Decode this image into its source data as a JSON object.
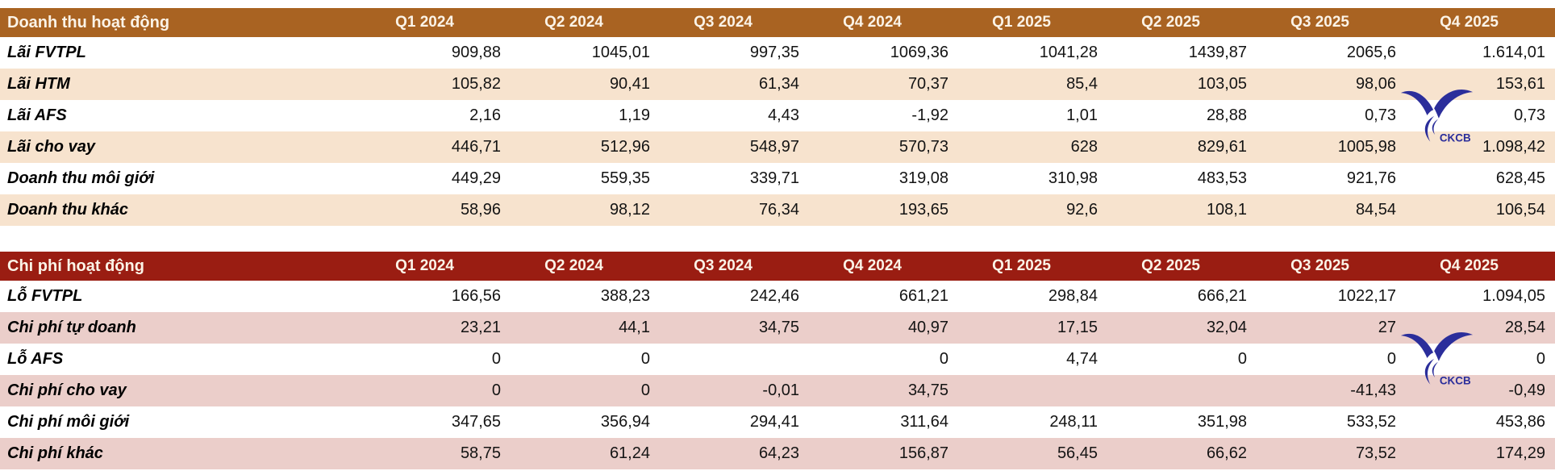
{
  "page": {
    "background": "#FFFFFF"
  },
  "watermark": {
    "text": "CKCB",
    "color": "#2B2E9B"
  },
  "revenue_table": {
    "title": "Doanh thu hoạt động",
    "header_bg": "#A96322",
    "header_text": "#FBF3E7",
    "alt_row_bg": "#F7E3CE",
    "quarters": [
      "Q1 2024",
      "Q2 2024",
      "Q3 2024",
      "Q4 2024",
      "Q1 2025",
      "Q2 2025",
      "Q3 2025",
      "Q4 2025"
    ],
    "rows": [
      {
        "label": "Lãi FVTPL",
        "values": [
          "909,88",
          "1045,01",
          "997,35",
          "1069,36",
          "1041,28",
          "1439,87",
          "2065,6",
          "1.614,01"
        ]
      },
      {
        "label": "Lãi HTM",
        "values": [
          "105,82",
          "90,41",
          "61,34",
          "70,37",
          "85,4",
          "103,05",
          "98,06",
          "153,61"
        ]
      },
      {
        "label": "Lãi AFS",
        "values": [
          "2,16",
          "1,19",
          "4,43",
          "-1,92",
          "1,01",
          "28,88",
          "0,73",
          "0,73"
        ]
      },
      {
        "label": "Lãi cho vay",
        "values": [
          "446,71",
          "512,96",
          "548,97",
          "570,73",
          "628",
          "829,61",
          "1005,98",
          "1.098,42"
        ]
      },
      {
        "label": "Doanh thu môi giới",
        "values": [
          "449,29",
          "559,35",
          "339,71",
          "319,08",
          "310,98",
          "483,53",
          "921,76",
          "628,45"
        ]
      },
      {
        "label": "Doanh thu khác",
        "values": [
          "58,96",
          "98,12",
          "76,34",
          "193,65",
          "92,6",
          "108,1",
          "84,54",
          "106,54"
        ]
      }
    ]
  },
  "expense_table": {
    "title": "Chi phí hoạt động",
    "header_bg": "#9A1D12",
    "header_text": "#FBF3E7",
    "alt_row_bg": "#EBCECA",
    "quarters": [
      "Q1 2024",
      "Q2 2024",
      "Q3 2024",
      "Q4 2024",
      "Q1 2025",
      "Q2 2025",
      "Q3 2025",
      "Q4 2025"
    ],
    "rows": [
      {
        "label": "Lỗ FVTPL",
        "values": [
          "166,56",
          "388,23",
          "242,46",
          "661,21",
          "298,84",
          "666,21",
          "1022,17",
          "1.094,05"
        ]
      },
      {
        "label": "Chi phí tự doanh",
        "values": [
          "23,21",
          "44,1",
          "34,75",
          "40,97",
          "17,15",
          "32,04",
          "27",
          "28,54"
        ]
      },
      {
        "label": "Lỗ AFS",
        "values": [
          "0",
          "0",
          "",
          "0",
          "4,74",
          "0",
          "0",
          "0"
        ]
      },
      {
        "label": "Chi phí cho vay",
        "values": [
          "0",
          "0",
          "-0,01",
          "34,75",
          "",
          "",
          "-41,43",
          "-0,49"
        ]
      },
      {
        "label": "Chi phí môi giới",
        "values": [
          "347,65",
          "356,94",
          "294,41",
          "311,64",
          "248,11",
          "351,98",
          "533,52",
          "453,86"
        ]
      },
      {
        "label": "Chi phí khác",
        "values": [
          "58,75",
          "61,24",
          "64,23",
          "156,87",
          "56,45",
          "66,62",
          "73,52",
          "174,29"
        ]
      }
    ]
  },
  "chart_data": [
    {
      "type": "table",
      "title": "Doanh thu hoạt động",
      "categories": [
        "Q1 2024",
        "Q2 2024",
        "Q3 2024",
        "Q4 2024",
        "Q1 2025",
        "Q2 2025",
        "Q3 2025",
        "Q4 2025"
      ],
      "series": [
        {
          "name": "Lãi FVTPL",
          "values": [
            909.88,
            1045.01,
            997.35,
            1069.36,
            1041.28,
            1439.87,
            2065.6,
            1614.01
          ]
        },
        {
          "name": "Lãi HTM",
          "values": [
            105.82,
            90.41,
            61.34,
            70.37,
            85.4,
            103.05,
            98.06,
            153.61
          ]
        },
        {
          "name": "Lãi AFS",
          "values": [
            2.16,
            1.19,
            4.43,
            -1.92,
            1.01,
            28.88,
            0.73,
            0.73
          ]
        },
        {
          "name": "Lãi cho vay",
          "values": [
            446.71,
            512.96,
            548.97,
            570.73,
            628,
            829.61,
            1005.98,
            1098.42
          ]
        },
        {
          "name": "Doanh thu môi giới",
          "values": [
            449.29,
            559.35,
            339.71,
            319.08,
            310.98,
            483.53,
            921.76,
            628.45
          ]
        },
        {
          "name": "Doanh thu khác",
          "values": [
            58.96,
            98.12,
            76.34,
            193.65,
            92.6,
            108.1,
            84.54,
            106.54
          ]
        }
      ]
    },
    {
      "type": "table",
      "title": "Chi phí hoạt động",
      "categories": [
        "Q1 2024",
        "Q2 2024",
        "Q3 2024",
        "Q4 2024",
        "Q1 2025",
        "Q2 2025",
        "Q3 2025",
        "Q4 2025"
      ],
      "series": [
        {
          "name": "Lỗ FVTPL",
          "values": [
            166.56,
            388.23,
            242.46,
            661.21,
            298.84,
            666.21,
            1022.17,
            1094.05
          ]
        },
        {
          "name": "Chi phí tự doanh",
          "values": [
            23.21,
            44.1,
            34.75,
            40.97,
            17.15,
            32.04,
            27,
            28.54
          ]
        },
        {
          "name": "Lỗ AFS",
          "values": [
            0,
            0,
            null,
            0,
            4.74,
            0,
            0,
            0
          ]
        },
        {
          "name": "Chi phí cho vay",
          "values": [
            0,
            0,
            -0.01,
            34.75,
            null,
            null,
            -41.43,
            -0.49
          ]
        },
        {
          "name": "Chi phí môi giới",
          "values": [
            347.65,
            356.94,
            294.41,
            311.64,
            248.11,
            351.98,
            533.52,
            453.86
          ]
        },
        {
          "name": "Chi phí khác",
          "values": [
            58.75,
            61.24,
            64.23,
            156.87,
            56.45,
            66.62,
            73.52,
            174.29
          ]
        }
      ]
    }
  ]
}
